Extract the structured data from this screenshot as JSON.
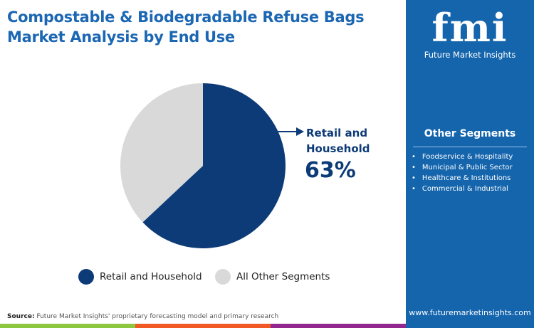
{
  "title_line1": "Compostable & Biodegradable Refuse Bags",
  "title_line2": "Market Analysis by End Use",
  "logo": {
    "text": "fmi",
    "subtitle": "Future Market Insights"
  },
  "sidebar": {
    "heading": "Other Segments",
    "items": [
      "Foodservice & Hospitality",
      "Municipal & Public Sector",
      "Healthcare & Institutions",
      "Commercial & Industrial"
    ],
    "url": "www.futuremarketinsights.com"
  },
  "callout": {
    "line1": "Retail and",
    "line2": "Household",
    "value": "63%"
  },
  "source_label": "Source:",
  "source_text": " Future Market Insights' proprietary forecasting model and primary research",
  "colors": {
    "retail": "#0d3b78",
    "other": "#d9d9d9",
    "sidebar": "#1565ad",
    "bar": [
      "#8dc63f",
      "#f15a24",
      "#92278f",
      "#1565ad"
    ]
  },
  "chart_data": {
    "type": "pie",
    "categories": [
      "Retail and Household",
      "All Other Segments"
    ],
    "values": [
      63,
      37
    ],
    "legend_placement": "bottom"
  }
}
